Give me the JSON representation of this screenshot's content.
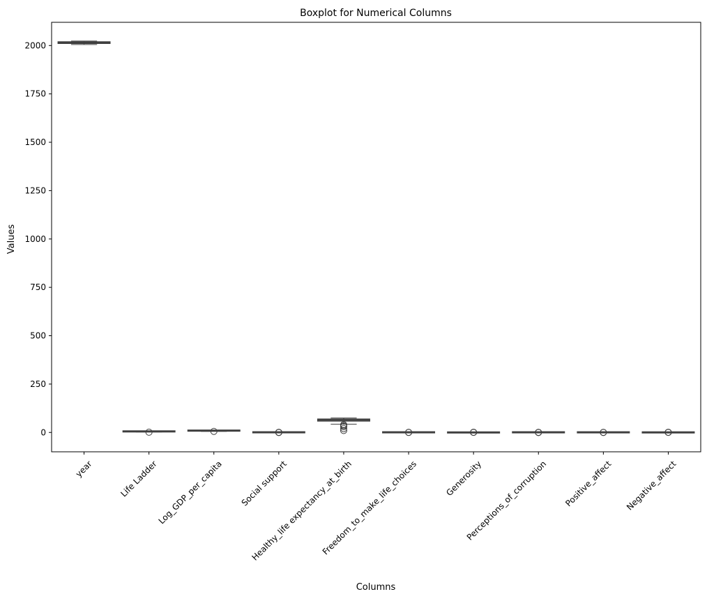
{
  "chart_data": {
    "type": "boxplot",
    "title": "Boxplot for Numerical Columns",
    "xlabel": "Columns",
    "ylabel": "Values",
    "ylim": [
      -100,
      2120
    ],
    "yticks": [
      0,
      250,
      500,
      750,
      1000,
      1250,
      1500,
      1750,
      2000
    ],
    "grid": false,
    "categories": [
      "year",
      "Life Ladder",
      "Log_GDP_per_capita",
      "Social support",
      "Healthy_life expectancy_at_birth",
      "Freedom_to_make_life_choices",
      "Generosity",
      "Perceptions_of_corruption",
      "Positive_affect",
      "Negative_affect"
    ],
    "boxes": [
      {
        "name": "year",
        "whislo": 2005,
        "q1": 2011,
        "median": 2015,
        "q3": 2019,
        "whishi": 2023,
        "fliers": []
      },
      {
        "name": "Life Ladder",
        "whislo": 2.4,
        "q1": 4.6,
        "median": 5.4,
        "q3": 6.2,
        "whishi": 8.0,
        "fliers": [
          1.3
        ]
      },
      {
        "name": "Log_GDP_per_capita",
        "whislo": 5.5,
        "q1": 8.5,
        "median": 9.5,
        "q3": 10.4,
        "whishi": 11.7,
        "fliers": [
          5.5
        ]
      },
      {
        "name": "Social support",
        "whislo": 0.3,
        "q1": 0.74,
        "median": 0.83,
        "q3": 0.9,
        "whishi": 0.99,
        "fliers": [
          0.29,
          0.25,
          0.23
        ]
      },
      {
        "name": "Healthy_life expectancy_at_birth",
        "whislo": 43,
        "q1": 59,
        "median": 65,
        "q3": 69,
        "whishi": 75,
        "fliers": [
          40,
          35,
          30,
          20,
          10
        ]
      },
      {
        "name": "Freedom_to_make_life_choices",
        "whislo": 0.3,
        "q1": 0.66,
        "median": 0.77,
        "q3": 0.86,
        "whishi": 0.99,
        "fliers": [
          0.25,
          0.3
        ]
      },
      {
        "name": "Generosity",
        "whislo": -0.34,
        "q1": -0.11,
        "median": -0.02,
        "q3": 0.09,
        "whishi": 0.39,
        "fliers": [
          0.5,
          0.6,
          0.7
        ]
      },
      {
        "name": "Perceptions_of_corruption",
        "whislo": 0.4,
        "q1": 0.69,
        "median": 0.8,
        "q3": 0.87,
        "whishi": 0.98,
        "fliers": [
          0.1,
          0.2,
          0.3
        ]
      },
      {
        "name": "Positive_affect",
        "whislo": 0.32,
        "q1": 0.57,
        "median": 0.66,
        "q3": 0.74,
        "whishi": 0.88,
        "fliers": [
          0.2,
          0.25
        ]
      },
      {
        "name": "Negative_affect",
        "whislo": 0.08,
        "q1": 0.21,
        "median": 0.26,
        "q3": 0.32,
        "whishi": 0.49,
        "fliers": [
          0.55,
          0.6,
          0.65
        ]
      }
    ],
    "colors": {
      "box_edge": "#3f3f3f",
      "box_fill": "#ffffff",
      "axis": "#000000"
    }
  }
}
